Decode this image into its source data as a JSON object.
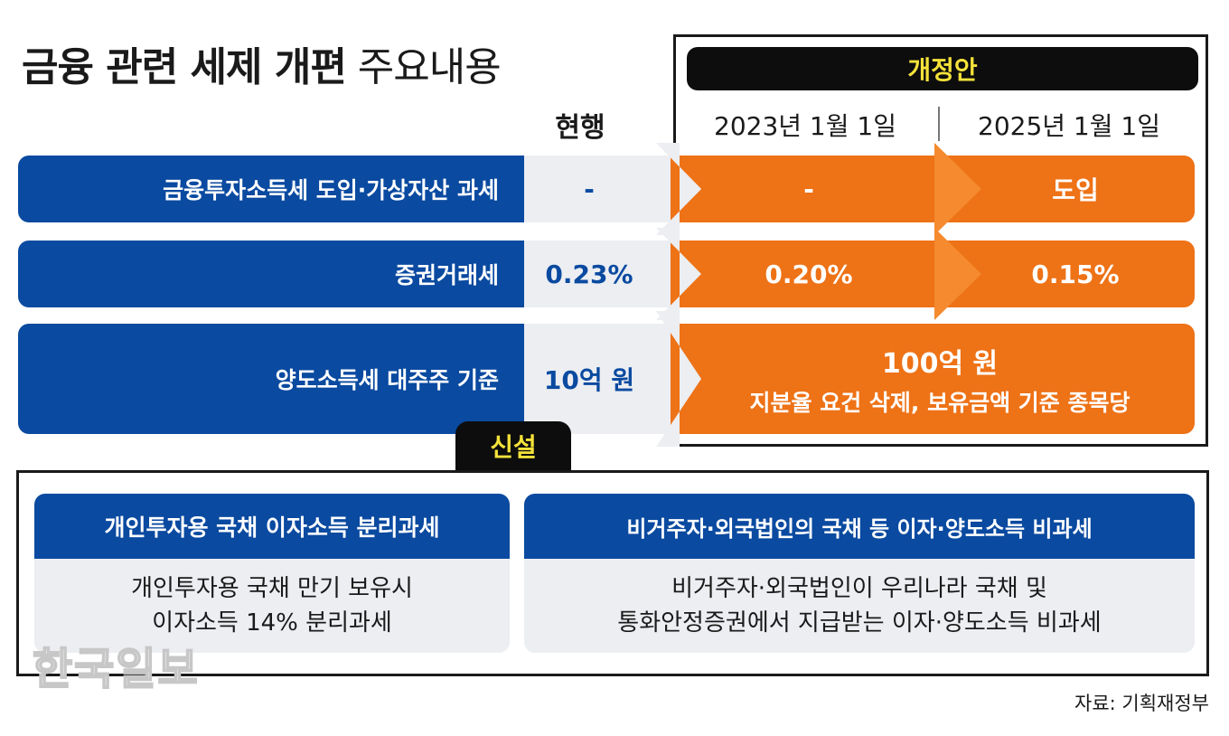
{
  "title": {
    "bold": "금융 관련 세제 개편",
    "light": "주요내용"
  },
  "proposal": {
    "header": "개정안",
    "dates": [
      "2023년 1월 1일",
      "2025년 1월 1일"
    ]
  },
  "current_header": "현행",
  "rows": [
    {
      "label": "금융투자소득세 도입·가상자산 과세",
      "current": "-",
      "y2023": "-",
      "y2025": "도입"
    },
    {
      "label": "증권거래세",
      "current": "0.23%",
      "y2023": "0.20%",
      "y2025": "0.15%"
    },
    {
      "label": "양도소득세 대주주 기준",
      "current": "10억 원",
      "merged_main": "100억 원",
      "merged_sub": "지분율 요건 삭제, 보유금액 기준 종목당"
    }
  ],
  "new_section": {
    "tag": "신설",
    "cards": [
      {
        "title": "개인투자용 국채 이자소득 분리과세",
        "lines": [
          "개인투자용 국채 만기 보유시",
          "이자소득 14% 분리과세"
        ]
      },
      {
        "title": "비거주자·외국법인의 국채 등 이자·양도소득 비과세",
        "lines": [
          "비거주자·외국법인이 우리나라 국채 및",
          "통화안정증권에서 지급받는 이자·양도소득 비과세"
        ]
      }
    ]
  },
  "watermark": "한국일보",
  "source": "자료: 기획재정부",
  "colors": {
    "blue": "#0a4aa0",
    "orange": "#ee7216",
    "gray": "#eceef2",
    "black": "#0d0d0d",
    "yellow": "#f5e23a"
  }
}
